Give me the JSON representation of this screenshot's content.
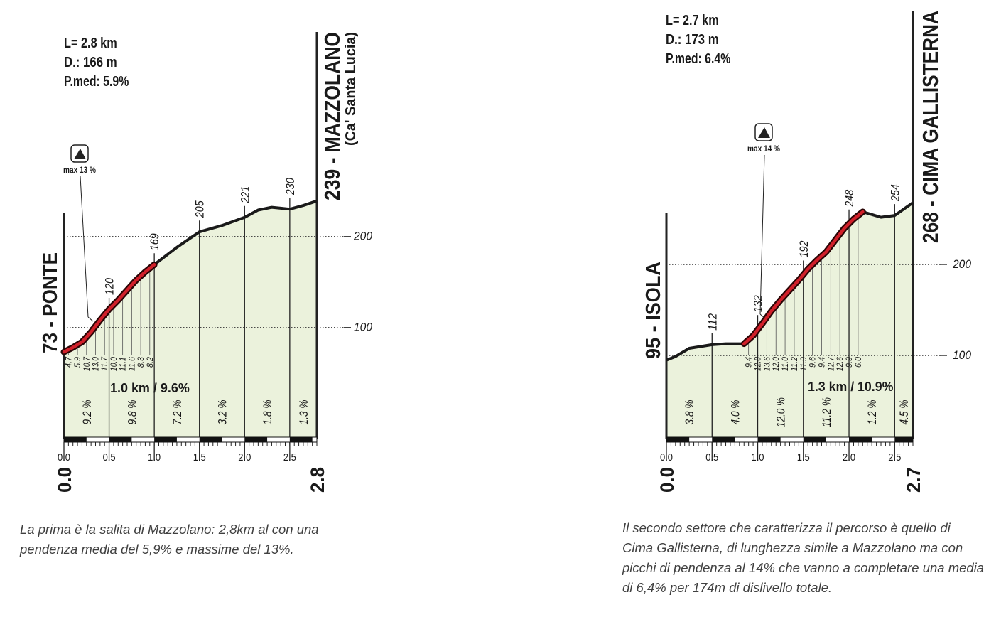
{
  "chart_data": [
    {
      "type": "area",
      "title": "239 - MAZZOLANO",
      "subtitle": "(Ca' Santa Lucia)",
      "start_label": "73 - PONTE",
      "stats": [
        "L= 2.8 km",
        "D.: 166 m",
        "P.med: 5.9%"
      ],
      "max_label": "max 13 %",
      "highlight_label": "1.0 km / 9.6%",
      "highlight_range": [
        0,
        1.0
      ],
      "color": "#1a1a1a",
      "fill": "#ebf2dc",
      "highlight_color": "#d0202a",
      "x": [
        0,
        0.1,
        0.2,
        0.3,
        0.4,
        0.5,
        0.6,
        0.7,
        0.8,
        0.9,
        1.0,
        1.25,
        1.5,
        1.75,
        2.0,
        2.15,
        2.3,
        2.4,
        2.5,
        2.65,
        2.8
      ],
      "values": [
        73,
        78,
        84,
        95,
        108,
        120,
        130,
        141,
        152,
        161,
        169,
        188,
        205,
        212,
        221,
        229,
        232,
        231,
        230,
        234,
        239
      ],
      "xlim": [
        0,
        2.8
      ],
      "xlim_labels": [
        "0.0",
        "2.8"
      ],
      "xticks": [
        {
          "value": 0,
          "label": "0.0"
        },
        {
          "value": 0.5,
          "label": "0.5"
        },
        {
          "value": 1,
          "label": "1.0"
        },
        {
          "value": 1.5,
          "label": "1.5"
        },
        {
          "value": 2,
          "label": "2.0"
        },
        {
          "value": 2.5,
          "label": "2.5"
        }
      ],
      "ylim": [
        -23,
        250
      ],
      "yticks": [
        100,
        200
      ],
      "markers": {
        "x": [
          0.5,
          1,
          1.5,
          2,
          2.5
        ],
        "values": [
          120,
          169,
          205,
          221,
          230
        ]
      },
      "segments": {
        "bins": [
          0,
          0.5,
          1,
          1.5,
          2,
          2.5,
          2.8
        ],
        "values": [
          9.2,
          9.8,
          7.2,
          3.2,
          1.8,
          1.3
        ],
        "value_labels": [
          "9.2 %",
          "9.8 %",
          "7.2 %",
          "3.2 %",
          "1.8 %",
          "1.3 %"
        ]
      },
      "detail": {
        "x": [
          0.05,
          0.15,
          0.25,
          0.35,
          0.45,
          0.55,
          0.65,
          0.75,
          0.85,
          0.95
        ],
        "values": [
          4.7,
          5.9,
          10.7,
          13.0,
          11.7,
          10.0,
          11.1,
          11.6,
          8.3,
          8.2
        ],
        "value_labels": [
          "4.7",
          "5.9",
          "10.7",
          "13.0",
          "11.7",
          "10.0",
          "11.1",
          "11.6",
          "8.3",
          "8.2"
        ]
      }
    },
    {
      "type": "area",
      "title": "268 - CIMA GALLISTERNA",
      "start_label": "95 - ISOLA",
      "stats": [
        "L= 2.7 km",
        "D.: 173 m",
        "P.med: 6.4%"
      ],
      "max_label": "max 14 %",
      "highlight_label": "1.3 km / 10.9%",
      "highlight_range": [
        0.85,
        2.15
      ],
      "color": "#1a1a1a",
      "fill": "#ebf2dc",
      "highlight_color": "#d0202a",
      "x": [
        0,
        0.1,
        0.25,
        0.5,
        0.65,
        0.85,
        0.95,
        1.05,
        1.15,
        1.25,
        1.35,
        1.45,
        1.55,
        1.65,
        1.75,
        1.85,
        1.95,
        2.05,
        2.15,
        2.35,
        2.5,
        2.7
      ],
      "values": [
        95,
        99,
        108,
        112,
        113,
        113,
        122,
        135,
        149,
        161,
        172,
        183,
        195,
        205,
        214,
        227,
        240,
        250,
        258,
        252,
        254,
        268
      ],
      "xlim": [
        0,
        2.7
      ],
      "xlim_labels": [
        "0.0",
        "2.7"
      ],
      "xticks": [
        {
          "value": 0,
          "label": "0.0"
        },
        {
          "value": 0.5,
          "label": "0.5"
        },
        {
          "value": 1,
          "label": "1.0"
        },
        {
          "value": 1.5,
          "label": "1.5"
        },
        {
          "value": 2,
          "label": "2.0"
        },
        {
          "value": 2.5,
          "label": "2.5"
        }
      ],
      "ylim": [
        8,
        280
      ],
      "yticks": [
        100,
        200
      ],
      "markers": {
        "x": [
          0.5,
          1,
          1.5,
          2,
          2.5
        ],
        "values": [
          112,
          132,
          192,
          248,
          254
        ]
      },
      "segments": {
        "bins": [
          0,
          0.5,
          1,
          1.5,
          2,
          2.5,
          2.7
        ],
        "values": [
          3.8,
          4.0,
          12.0,
          11.2,
          1.2,
          4.5
        ],
        "value_labels": [
          "3.8 %",
          "4.0 %",
          "12.0 %",
          "11.2 %",
          "1.2 %",
          "4.5 %"
        ]
      },
      "detail": {
        "x": [
          0.9,
          1.0,
          1.1,
          1.2,
          1.3,
          1.4,
          1.5,
          1.6,
          1.7,
          1.8,
          1.9,
          2.0,
          2.1
        ],
        "values": [
          9.4,
          12.8,
          13.6,
          12.0,
          11.0,
          11.2,
          11.9,
          9.6,
          9.4,
          12.7,
          12.6,
          9.9,
          6.0
        ],
        "value_labels": [
          "9.4",
          "12.8",
          "13.6",
          "12.0",
          "11.0",
          "11.2",
          "11.9",
          "9.6",
          "9.4",
          "12.7",
          "12.6",
          "9.9",
          "6.0"
        ]
      }
    }
  ],
  "captions": [
    "La prima è la salita di Mazzolano: 2,8km al con una pendenza media del 5,9% e massime del 13%.",
    "Il secondo settore che caratterizza il percorso è quello di Cima Gallisterna, di lunghezza simile a Mazzolano ma con picchi di pendenza al 14% che vanno a completare una media di 6,4% per 174m di dislivello totale."
  ]
}
